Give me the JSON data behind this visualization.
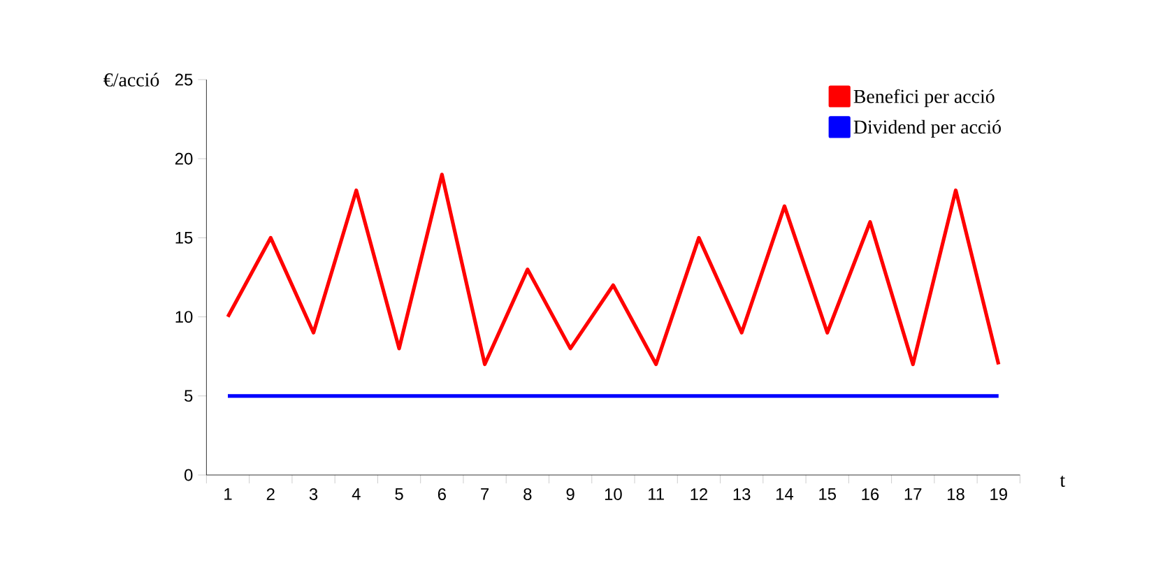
{
  "chart_data": {
    "type": "line",
    "categories": [
      "1",
      "2",
      "3",
      "4",
      "5",
      "6",
      "7",
      "8",
      "9",
      "10",
      "11",
      "12",
      "13",
      "14",
      "15",
      "16",
      "17",
      "18",
      "19"
    ],
    "xlabel": "t",
    "ylabel": "€/acció",
    "ylim": [
      0,
      25
    ],
    "yticks": [
      0,
      5,
      10,
      15,
      20,
      25
    ],
    "legend": "top right",
    "series": [
      {
        "name": "Benefici per acció",
        "color": "#ff0000",
        "values": [
          10,
          15,
          9,
          18,
          8,
          19,
          7,
          13,
          8,
          12,
          7,
          15,
          9,
          17,
          9,
          16,
          7,
          18,
          7
        ]
      },
      {
        "name": "Dividend per acció",
        "color": "#0000ff",
        "values": [
          5,
          5,
          5,
          5,
          5,
          5,
          5,
          5,
          5,
          5,
          5,
          5,
          5,
          5,
          5,
          5,
          5,
          5,
          5
        ]
      }
    ]
  }
}
